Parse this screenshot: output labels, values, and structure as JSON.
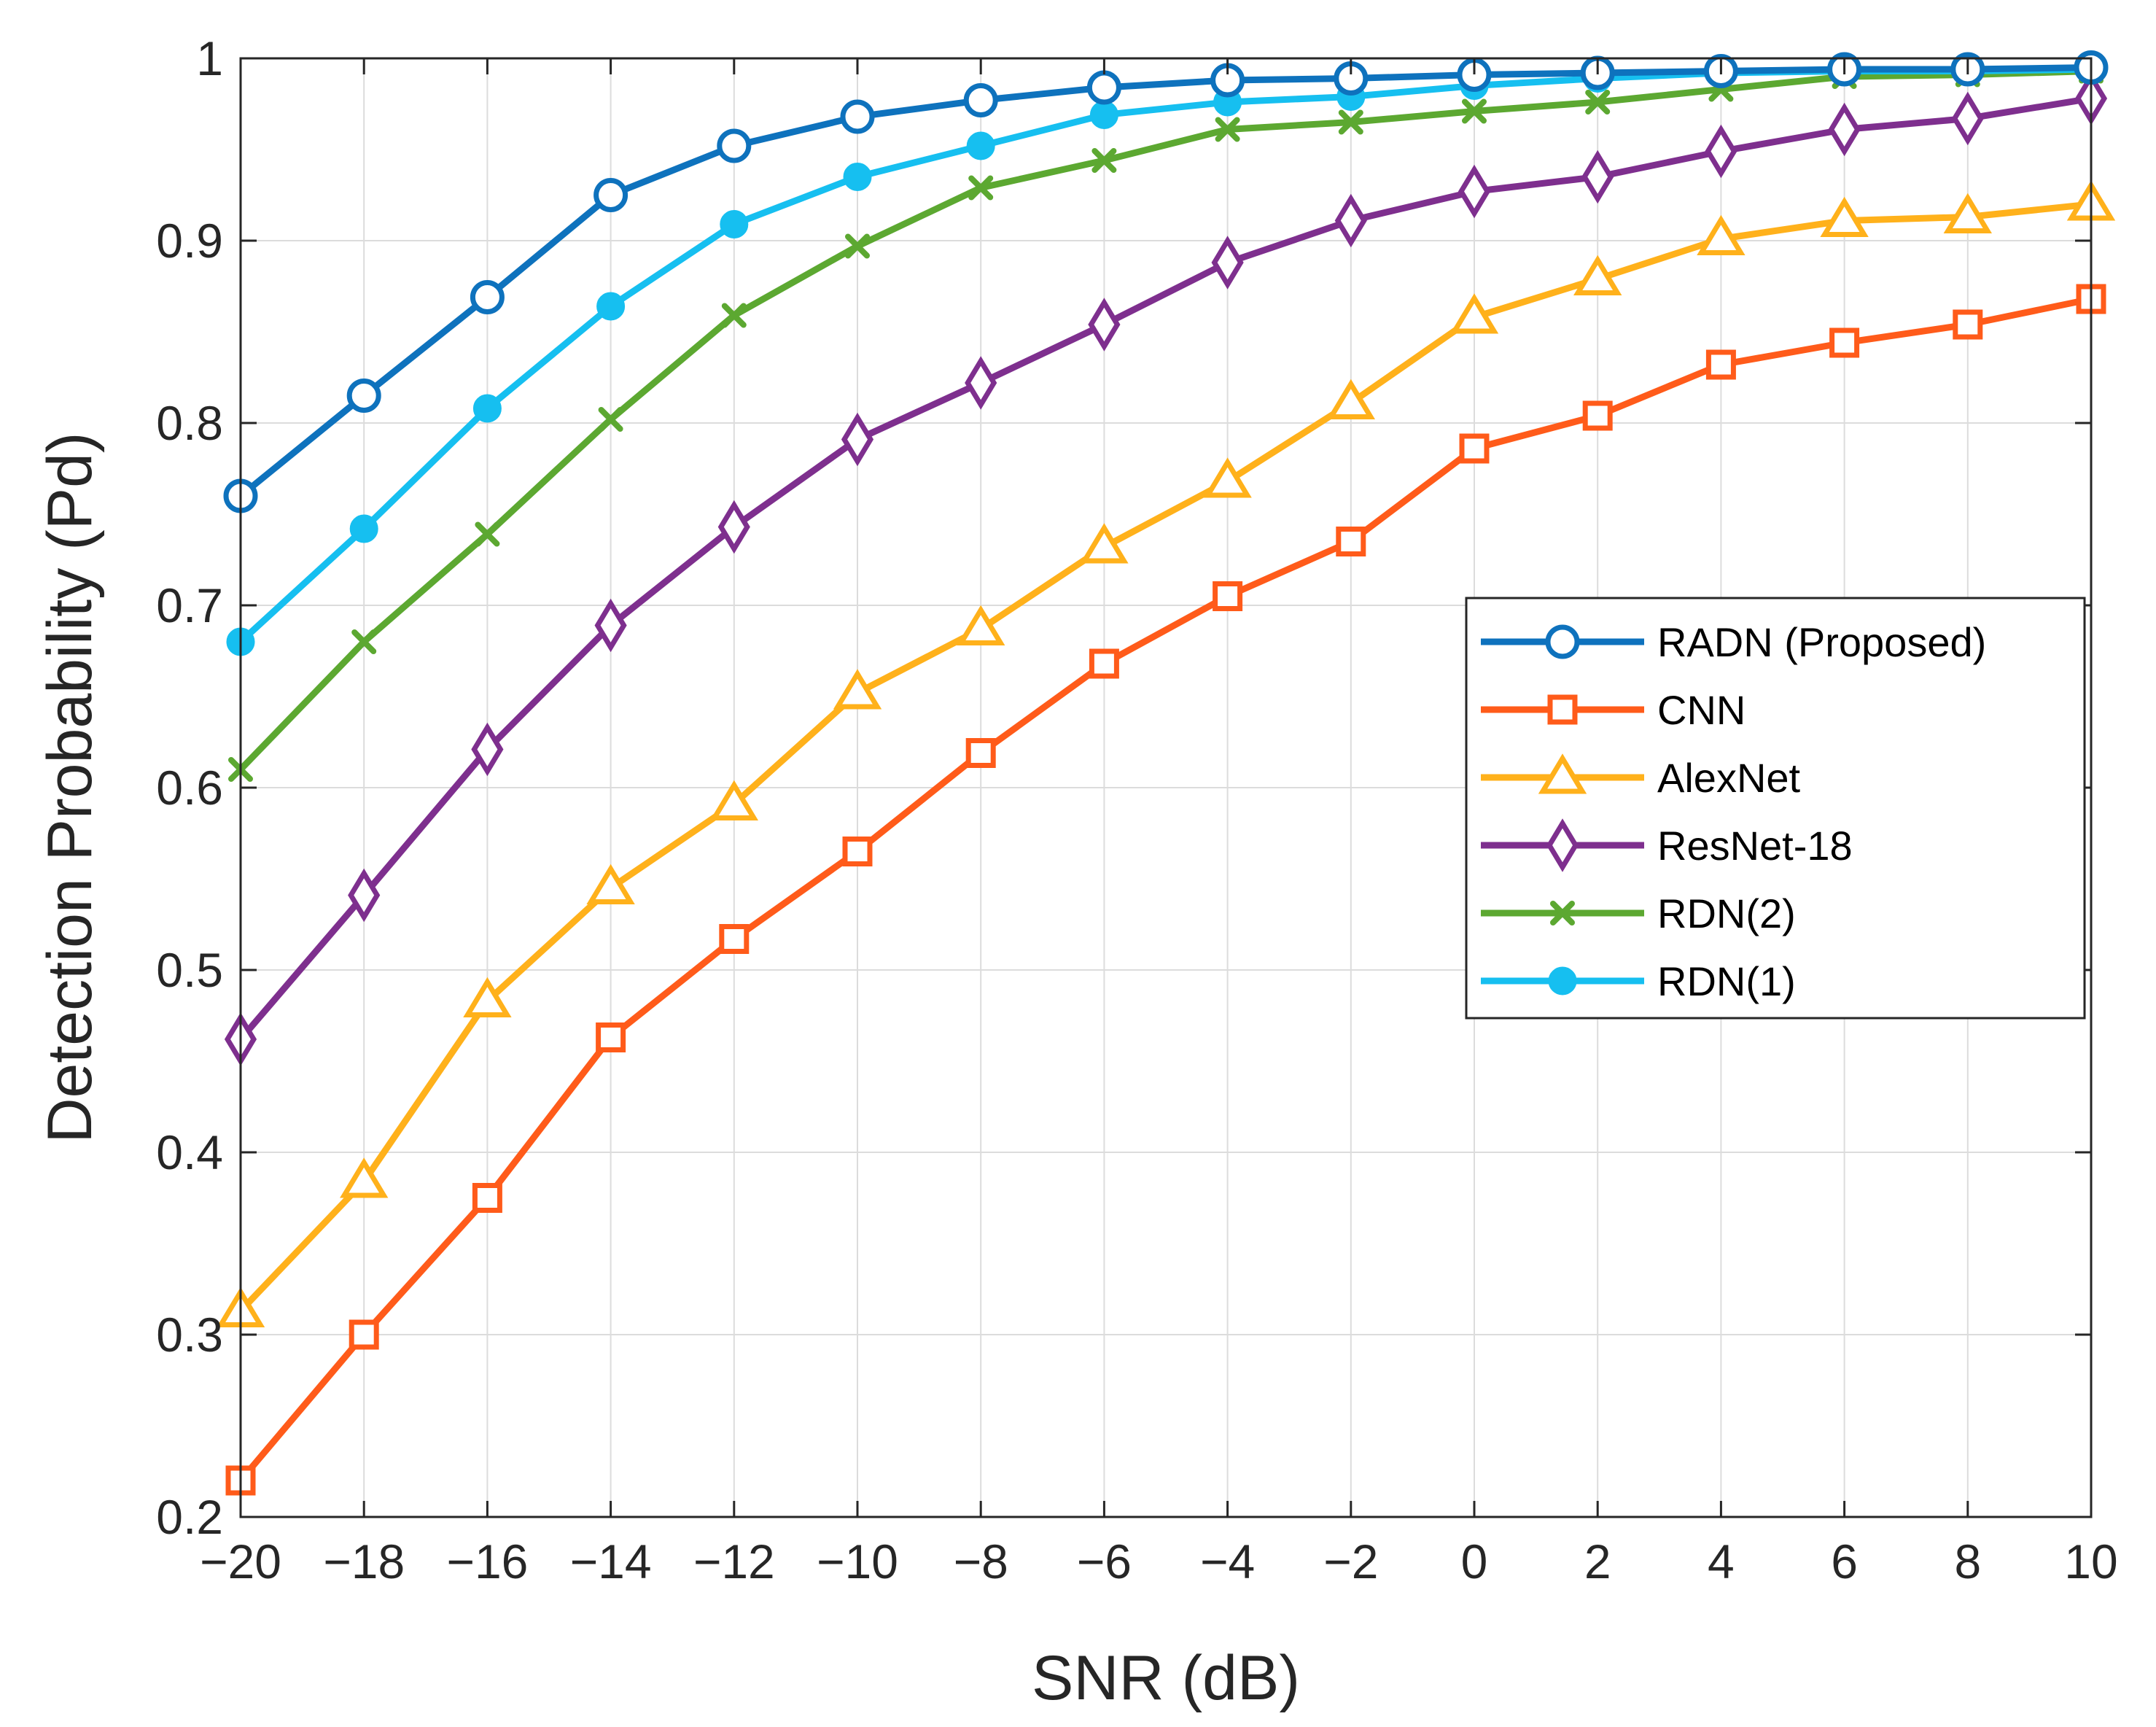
{
  "chart_data": {
    "type": "line",
    "title": "",
    "xlabel": "SNR (dB)",
    "ylabel": "Detection Probability (Pd)",
    "xlim": [
      -20,
      10
    ],
    "ylim": [
      0.2,
      1
    ],
    "grid": true,
    "legend_position": "right",
    "x": [
      -20,
      -18,
      -16,
      -14,
      -12,
      -10,
      -8,
      -6,
      -4,
      -2,
      0,
      2,
      4,
      6,
      8,
      10
    ],
    "xticks": [
      {
        "value": -20,
        "label": "−20"
      },
      {
        "value": -18,
        "label": "−18"
      },
      {
        "value": -16,
        "label": "−16"
      },
      {
        "value": -14,
        "label": "−14"
      },
      {
        "value": -12,
        "label": "−12"
      },
      {
        "value": -10,
        "label": "−10"
      },
      {
        "value": -8,
        "label": "−8"
      },
      {
        "value": -6,
        "label": "−6"
      },
      {
        "value": -4,
        "label": "−4"
      },
      {
        "value": -2,
        "label": "−2"
      },
      {
        "value": 0,
        "label": "0"
      },
      {
        "value": 2,
        "label": "2"
      },
      {
        "value": 4,
        "label": "4"
      },
      {
        "value": 6,
        "label": "6"
      },
      {
        "value": 8,
        "label": "8"
      },
      {
        "value": 10,
        "label": "10"
      }
    ],
    "yticks": [
      {
        "value": 0.2,
        "label": "0.2"
      },
      {
        "value": 0.3,
        "label": "0.3"
      },
      {
        "value": 0.4,
        "label": "0.4"
      },
      {
        "value": 0.5,
        "label": "0.5"
      },
      {
        "value": 0.6,
        "label": "0.6"
      },
      {
        "value": 0.7,
        "label": "0.7"
      },
      {
        "value": 0.8,
        "label": "0.8"
      },
      {
        "value": 0.9,
        "label": "0.9"
      },
      {
        "value": 1,
        "label": "1"
      }
    ],
    "series": [
      {
        "name": "CNN",
        "color": "#ff5b1a",
        "marker": "square",
        "values": [
          0.22,
          0.3,
          0.375,
          0.463,
          0.517,
          0.565,
          0.619,
          0.668,
          0.705,
          0.735,
          0.786,
          0.804,
          0.832,
          0.844,
          0.854,
          0.868
        ]
      },
      {
        "name": "AlexNet",
        "color": "#ffb11b",
        "marker": "triangle",
        "values": [
          0.313,
          0.384,
          0.483,
          0.545,
          0.591,
          0.652,
          0.687,
          0.732,
          0.768,
          0.811,
          0.858,
          0.879,
          0.901,
          0.911,
          0.913,
          0.92
        ]
      },
      {
        "name": "ResNet-18",
        "color": "#7e2f8e",
        "marker": "diamond",
        "values": [
          0.462,
          0.541,
          0.621,
          0.689,
          0.743,
          0.791,
          0.822,
          0.854,
          0.888,
          0.911,
          0.927,
          0.935,
          0.949,
          0.961,
          0.967,
          0.978
        ]
      },
      {
        "name": "RDN(2)",
        "color": "#5ca831",
        "marker": "x",
        "values": [
          0.61,
          0.68,
          0.739,
          0.802,
          0.859,
          0.897,
          0.929,
          0.944,
          0.961,
          0.965,
          0.971,
          0.976,
          0.983,
          0.99,
          0.991,
          0.993
        ]
      },
      {
        "name": "RDN(1)",
        "color": "#16bff0",
        "marker": "filled-circle",
        "values": [
          0.68,
          0.742,
          0.808,
          0.864,
          0.909,
          0.935,
          0.952,
          0.969,
          0.976,
          0.979,
          0.985,
          0.989,
          0.992,
          0.993,
          0.993,
          0.994
        ]
      },
      {
        "name": "RADN (Proposed)",
        "color": "#0e72bd",
        "marker": "circle",
        "values": [
          0.76,
          0.815,
          0.869,
          0.925,
          0.952,
          0.968,
          0.977,
          0.984,
          0.988,
          0.989,
          0.991,
          0.992,
          0.993,
          0.994,
          0.994,
          0.995
        ]
      }
    ],
    "legend": [
      "RADN (Proposed)",
      "CNN",
      "AlexNet",
      "ResNet-18",
      "RDN(2)",
      "RDN(1)"
    ]
  }
}
